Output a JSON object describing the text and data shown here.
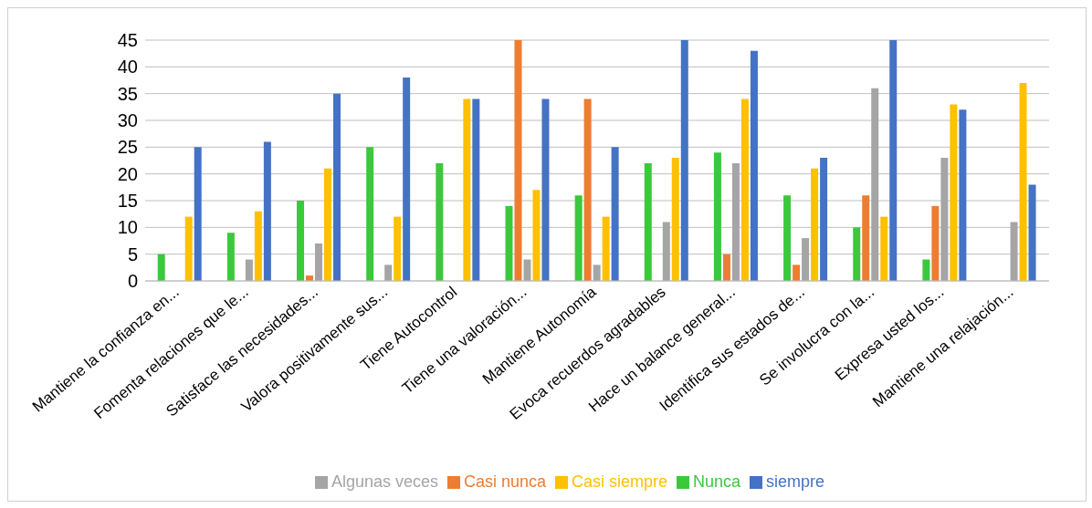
{
  "chart_data": {
    "type": "bar",
    "categories": [
      "Mantiene la confianza en...",
      "Fomenta relaciones que le...",
      "Satisface las necesidades...",
      "Valora  positivamente sus...",
      "Tiene Autocontrol",
      "Tiene una valoración...",
      "Mantiene Autonomía",
      "Evoca recuerdos agradables",
      "Hace un balance general...",
      "Identifica sus estados de...",
      "Se involucra con la...",
      "Expresa usted los...",
      "Mantiene una relajación..."
    ],
    "series": [
      {
        "name": "Nunca",
        "color": "#3cc83c",
        "values": [
          5,
          9,
          15,
          25,
          22,
          14,
          16,
          22,
          24,
          16,
          10,
          4,
          null
        ]
      },
      {
        "name": "Casi nunca",
        "color": "#ed7d31",
        "values": [
          null,
          null,
          1,
          null,
          null,
          45,
          34,
          null,
          5,
          3,
          16,
          14,
          null
        ]
      },
      {
        "name": "Algunas veces",
        "color": "#a5a5a5",
        "values": [
          null,
          4,
          7,
          3,
          null,
          4,
          3,
          11,
          22,
          8,
          36,
          23,
          11
        ]
      },
      {
        "name": "Casi siempre",
        "color": "#ffc000",
        "values": [
          12,
          13,
          21,
          12,
          34,
          17,
          12,
          23,
          34,
          21,
          12,
          33,
          37
        ]
      },
      {
        "name": "siempre",
        "color": "#4472c4",
        "values": [
          25,
          26,
          35,
          38,
          34,
          34,
          25,
          45,
          43,
          23,
          45,
          32,
          18
        ]
      }
    ],
    "ylim": [
      0,
      45
    ],
    "yticks": [
      0,
      5,
      10,
      15,
      20,
      25,
      30,
      35,
      40,
      45
    ],
    "grid": "y",
    "legend": "bottom"
  }
}
